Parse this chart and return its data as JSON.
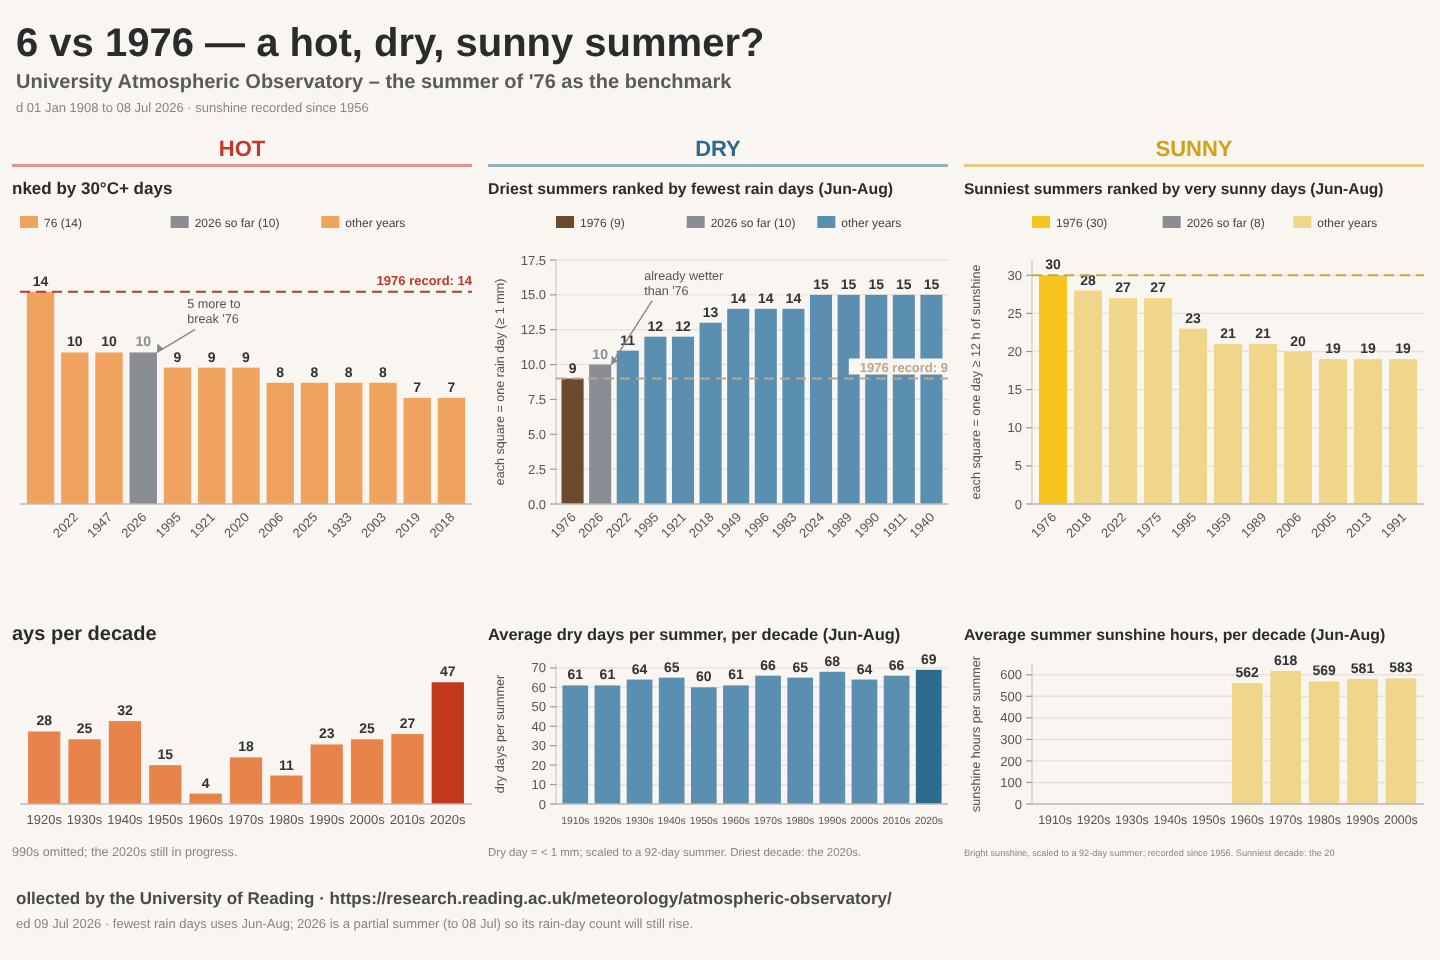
{
  "chart_data": [
    {
      "type": "other",
      "title": "6 vs 1976 — a hot, dry, sunny summer?",
      "subtitle": "University Atmospheric Observatory – the summer of '76 as the benchmark",
      "annotations": [
        "d 01 Jan 1908 to 08 Jul 2026 · sunshine recorded since 1956",
        "ollected by the University of Reading · https://research.reading.ac.uk/meteorology/atmospheric-observatory/",
        "ed 09 Jul 2026 · fewest rain days uses Jun-Aug; 2026 is a partial summer (to 08 Jul) so its rain-day count will still rise."
      ]
    },
    {
      "type": "bar",
      "subtitle": "HOT",
      "title": "nked by 30°C+ days",
      "categories": [
        null,
        "2022",
        "1947",
        "2026",
        "1995",
        "1921",
        "2020",
        "2006",
        "2025",
        "1933",
        "2003",
        "2019",
        "2018"
      ],
      "legend": "top",
      "data_labels": true,
      "series": [
        {
          "name": "76 (14)",
          "color": "#f0a35e",
          "values": [
            14,
            null,
            null,
            null,
            null,
            null,
            null,
            null,
            null,
            null,
            null,
            null,
            null
          ]
        },
        {
          "name": "2026 so far (10)",
          "color": "#8a8d93",
          "values": [
            null,
            null,
            null,
            10,
            null,
            null,
            null,
            null,
            null,
            null,
            null,
            null,
            null
          ]
        },
        {
          "name": "other years",
          "color": "#f0a35e",
          "values": [
            null,
            10,
            10,
            null,
            9,
            9,
            9,
            8,
            8,
            8,
            8,
            7,
            7
          ]
        }
      ],
      "ref_lines": [
        {
          "axis": "y",
          "value": 14,
          "label": "1976 record: 14",
          "color": "#c0392b",
          "line_style": "dashed"
        }
      ],
      "annotations": [
        {
          "text": "5 more to break '76",
          "x": "2026",
          "y": 10
        }
      ]
    },
    {
      "type": "bar",
      "subtitle": "DRY",
      "title": "Driest summers ranked by fewest rain days (Jun-Aug)",
      "ylabel": "each square = one rain day (≥ 1 mm)",
      "categories": [
        "1976",
        "2026",
        "2022",
        "1995",
        "1921",
        "2018",
        "1949",
        "1996",
        "1983",
        "2024",
        "1989",
        "1990",
        "1911",
        "1940"
      ],
      "legend": "top",
      "data_labels": true,
      "grid": "y",
      "ylim": [
        0,
        17.5
      ],
      "yticks": [
        {
          "value": 0,
          "label": "0.0"
        },
        {
          "value": 2.5,
          "label": "2.5"
        },
        {
          "value": 5,
          "label": "5.0"
        },
        {
          "value": 7.5,
          "label": "7.5"
        },
        {
          "value": 10,
          "label": "10.0"
        },
        {
          "value": 12.5,
          "label": "12.5"
        },
        {
          "value": 15,
          "label": "15.0"
        },
        {
          "value": 17.5,
          "label": "17.5"
        }
      ],
      "series": [
        {
          "name": "1976 (9)",
          "color": "#6b4a2e",
          "values": [
            9,
            null,
            null,
            null,
            null,
            null,
            null,
            null,
            null,
            null,
            null,
            null,
            null,
            null
          ]
        },
        {
          "name": "2026 so far (10)",
          "color": "#8a8d93",
          "values": [
            null,
            10,
            null,
            null,
            null,
            null,
            null,
            null,
            null,
            null,
            null,
            null,
            null,
            null
          ]
        },
        {
          "name": "other years",
          "color": "#5b8fb2",
          "values": [
            null,
            null,
            11,
            12,
            12,
            13,
            14,
            14,
            14,
            15,
            15,
            15,
            15,
            15
          ]
        }
      ],
      "ref_lines": [
        {
          "axis": "y",
          "value": 9,
          "label": "1976 record: 9",
          "color": "#b9a88c",
          "line_style": "dashed"
        }
      ],
      "annotations": [
        {
          "text": "already wetter than '76",
          "x": "2026",
          "y": 10
        }
      ]
    },
    {
      "type": "bar",
      "subtitle": "SUNNY",
      "title": "Sunniest summers ranked by very sunny days (Jun-Aug)",
      "ylabel": "each square = one day ≥ 12 h of sunshine",
      "categories": [
        "1976",
        "2018",
        "2022",
        "1975",
        "1995",
        "1959",
        "1989",
        "2006",
        "2005",
        "2013",
        "1991"
      ],
      "legend": "top",
      "data_labels": true,
      "grid": "y",
      "ylim": [
        0,
        32
      ],
      "yticks": [
        0,
        5,
        10,
        15,
        20,
        25,
        30
      ],
      "series": [
        {
          "name": "1976 (30)",
          "color": "#f7c51e",
          "values": [
            30,
            null,
            null,
            null,
            null,
            null,
            null,
            null,
            null,
            null,
            null
          ]
        },
        {
          "name": "2026 so far (8)",
          "color": "#8a8d93",
          "values": [
            null,
            null,
            null,
            null,
            null,
            null,
            null,
            null,
            null,
            null,
            null
          ]
        },
        {
          "name": "other years",
          "color": "#f0d68a",
          "values": [
            null,
            28,
            27,
            27,
            23,
            21,
            21,
            20,
            19,
            19,
            19
          ]
        }
      ],
      "ref_lines": [
        {
          "axis": "y",
          "value": 30,
          "color": "#c9a84a",
          "line_style": "dashed"
        }
      ]
    },
    {
      "type": "bar",
      "title": "ays per decade",
      "categories": [
        "1920s",
        "1930s",
        "1940s",
        "1950s",
        "1960s",
        "1970s",
        "1980s",
        "1990s",
        "2000s",
        "2010s",
        "2020s"
      ],
      "values": [
        28,
        25,
        32,
        15,
        4,
        18,
        11,
        23,
        25,
        27,
        47
      ],
      "colors": [
        "#e8844b",
        "#e8844b",
        "#e8844b",
        "#e8844b",
        "#e8844b",
        "#e8844b",
        "#e8844b",
        "#e8844b",
        "#e8844b",
        "#e8844b",
        "#c0391d"
      ],
      "data_labels": true,
      "annotations": [
        "990s omitted; the 2020s still in progress."
      ]
    },
    {
      "type": "bar",
      "title": "Average dry days per summer, per decade (Jun-Aug)",
      "ylabel": "dry days per summer",
      "categories": [
        "1910s",
        "1920s",
        "1930s",
        "1940s",
        "1950s",
        "1960s",
        "1970s",
        "1980s",
        "1990s",
        "2000s",
        "2010s",
        "2020s"
      ],
      "values": [
        61,
        61,
        64,
        65,
        60,
        61,
        66,
        65,
        68,
        64,
        66,
        69
      ],
      "colors": [
        "#5b8fb2",
        "#5b8fb2",
        "#5b8fb2",
        "#5b8fb2",
        "#5b8fb2",
        "#5b8fb2",
        "#5b8fb2",
        "#5b8fb2",
        "#5b8fb2",
        "#5b8fb2",
        "#5b8fb2",
        "#2d6a8e"
      ],
      "data_labels": true,
      "grid": "y",
      "ylim": [
        0,
        72
      ],
      "yticks": [
        0,
        10,
        20,
        30,
        40,
        50,
        60,
        70
      ],
      "annotations": [
        "Dry day = < 1 mm; scaled to a 92-day summer. Driest decade: the 2020s."
      ]
    },
    {
      "type": "bar",
      "title": "Average summer sunshine hours, per decade (Jun-Aug)",
      "ylabel": "sunshine hours per summer",
      "categories": [
        "1910s",
        "1920s",
        "1930s",
        "1940s",
        "1950s",
        "1960s",
        "1970s",
        "1980s",
        "1990s",
        "2000s"
      ],
      "values": [
        null,
        null,
        null,
        null,
        null,
        562,
        618,
        569,
        581,
        583
      ],
      "color": "#f0d68a",
      "data_labels": true,
      "grid": "y",
      "ylim": [
        0,
        650
      ],
      "yticks": [
        0,
        100,
        200,
        300,
        400,
        500,
        600
      ],
      "annotations": [
        "Bright sunshine, scaled to a 92-day summer; recorded since 1956. Sunniest decade: the 20"
      ]
    }
  ]
}
